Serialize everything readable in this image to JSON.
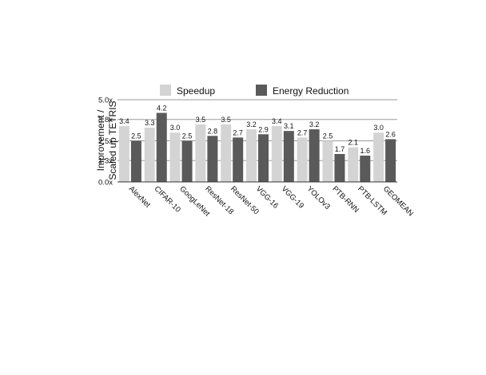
{
  "chart_data": {
    "type": "bar",
    "categories": [
      "AlexNet",
      "CIFAR-10",
      "GoogLeNet",
      "ResNet-18",
      "ResNet-50",
      "VGG-16",
      "VGG-19",
      "YOLOv3",
      "PTB-RNN",
      "PTB-LSTM",
      "GEOMEAN"
    ],
    "series": [
      {
        "name": "Speedup",
        "color": "#d4d4d4",
        "values": [
          3.4,
          3.3,
          3.0,
          3.5,
          3.5,
          3.2,
          3.4,
          2.7,
          2.5,
          2.1,
          3.0
        ]
      },
      {
        "name": "Energy Reduction",
        "color": "#5a5a5a",
        "values": [
          2.5,
          4.2,
          2.5,
          2.8,
          2.7,
          2.9,
          3.1,
          3.2,
          1.7,
          1.6,
          2.6
        ]
      }
    ],
    "ylabel": "Improvement / Scaled up TETRIS",
    "ylabel_lines": [
      "Improvement /",
      "Scaled up TETRIS"
    ],
    "ylim": [
      0,
      5.0
    ],
    "yticks": [
      0,
      1.3,
      2.5,
      3.8,
      5.0
    ],
    "ytick_labels": [
      "0.0x",
      "1.3x",
      "2.5x",
      "3.8x",
      "5.0x"
    ],
    "grid": true,
    "legend": "top-center"
  }
}
